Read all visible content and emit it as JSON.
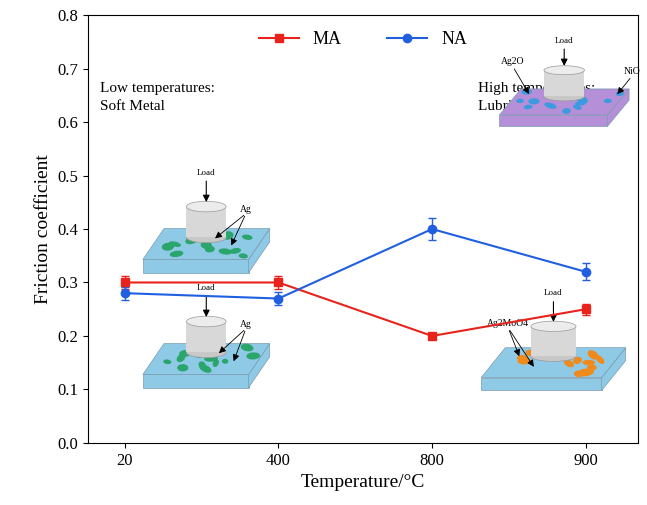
{
  "chart_data": {
    "type": "line",
    "x_label": "Temperature/°C",
    "y_label": "Friction coefficient",
    "categories": [
      "20",
      "400",
      "800",
      "900"
    ],
    "ylim": [
      0,
      0.8
    ],
    "yticks": [
      {
        "value": 0,
        "label": "0.0"
      },
      0.1,
      0.2,
      0.3,
      0.4,
      0.5,
      0.6,
      0.7,
      0.8
    ],
    "legend": "upper center",
    "series": [
      {
        "name": "MA",
        "color": "#e8231c",
        "marker": "square",
        "line_style": "solid",
        "values": [
          0.3,
          0.3,
          0.2,
          0.25
        ],
        "errors": [
          0.012,
          0.012,
          0.006,
          0.01
        ]
      },
      {
        "name": "NA",
        "color": "#1f5fe0",
        "marker": "circle",
        "line_style": "solid",
        "values": [
          0.28,
          0.27,
          0.4,
          0.32
        ],
        "errors": [
          0.012,
          0.012,
          0.02,
          0.016
        ]
      }
    ],
    "annotations": [
      {
        "text": "Low temperatures:\nSoft Metal"
      },
      {
        "text": "High temperatures:\nLubricous Oxides"
      }
    ],
    "illustrations": [
      {
        "load": "Load",
        "labels": [
          "Ag"
        ]
      },
      {
        "load": "Load",
        "labels": [
          "Ag"
        ]
      },
      {
        "load": "Load",
        "labels": [
          "Ag2O",
          "NiO"
        ]
      },
      {
        "load": "Load",
        "labels": [
          "Ag2MoO4"
        ]
      }
    ]
  }
}
